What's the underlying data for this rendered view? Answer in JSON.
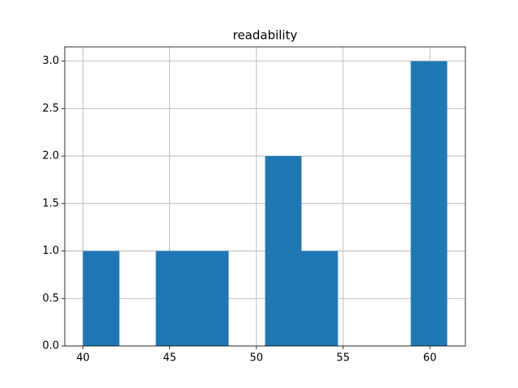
{
  "chart_data": {
    "type": "histogram",
    "title": "readability",
    "bins": [
      40,
      42.1,
      44.2,
      46.3,
      48.4,
      50.5,
      52.6,
      54.7,
      56.8,
      58.9,
      61
    ],
    "counts": [
      1,
      0,
      1,
      1,
      0,
      2,
      1,
      0,
      0,
      3
    ],
    "color": "#1f77b4",
    "xlim": [
      38.95,
      62.05
    ],
    "xticks": [
      40,
      45,
      50,
      55,
      60
    ],
    "ylim": [
      0,
      3.15
    ],
    "yticks": [
      {
        "value": 0,
        "label": "0.0"
      },
      {
        "value": 0.5,
        "label": "0.5"
      },
      {
        "value": 1,
        "label": "1.0"
      },
      {
        "value": 1.5,
        "label": "1.5"
      },
      {
        "value": 2,
        "label": "2.0"
      },
      {
        "value": 2.5,
        "label": "2.5"
      },
      {
        "value": 3,
        "label": "3.0"
      }
    ],
    "grid": true
  }
}
